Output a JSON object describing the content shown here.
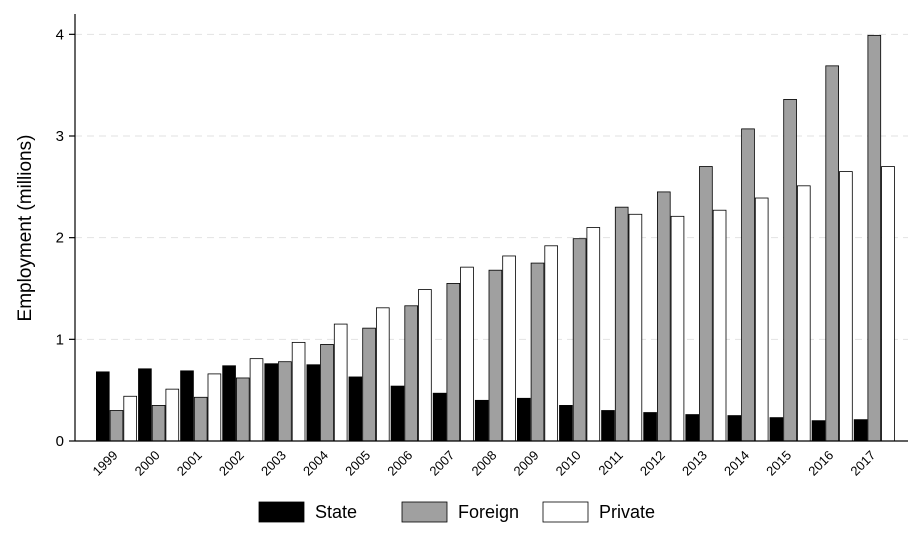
{
  "chart_data": {
    "type": "bar",
    "title": "",
    "xlabel": "",
    "ylabel": "Employment (millions)",
    "ylim": [
      0,
      4.2
    ],
    "yticks": [
      0,
      1,
      2,
      3,
      4
    ],
    "grid": "horizontal dashed at y ticks",
    "legend_position": "bottom",
    "categories": [
      "1999",
      "2000",
      "2001",
      "2002",
      "2003",
      "2004",
      "2005",
      "2006",
      "2007",
      "2008",
      "2009",
      "2010",
      "2011",
      "2012",
      "2013",
      "2014",
      "2015",
      "2016",
      "2017"
    ],
    "series": [
      {
        "name": "State",
        "color": "#000000",
        "values": [
          0.68,
          0.71,
          0.69,
          0.74,
          0.76,
          0.75,
          0.63,
          0.54,
          0.47,
          0.4,
          0.42,
          0.35,
          0.3,
          0.28,
          0.26,
          0.25,
          0.23,
          0.2,
          0.21
        ]
      },
      {
        "name": "Foreign",
        "color": "#a0a0a0",
        "values": [
          0.3,
          0.35,
          0.43,
          0.62,
          0.78,
          0.95,
          1.11,
          1.33,
          1.55,
          1.68,
          1.75,
          1.99,
          2.3,
          2.45,
          2.7,
          3.07,
          3.36,
          3.69,
          3.99
        ]
      },
      {
        "name": "Private",
        "color": "#ffffff",
        "values": [
          0.44,
          0.51,
          0.66,
          0.81,
          0.97,
          1.15,
          1.31,
          1.49,
          1.71,
          1.82,
          1.92,
          2.1,
          2.23,
          2.21,
          2.27,
          2.39,
          2.51,
          2.65,
          2.7
        ]
      }
    ]
  }
}
